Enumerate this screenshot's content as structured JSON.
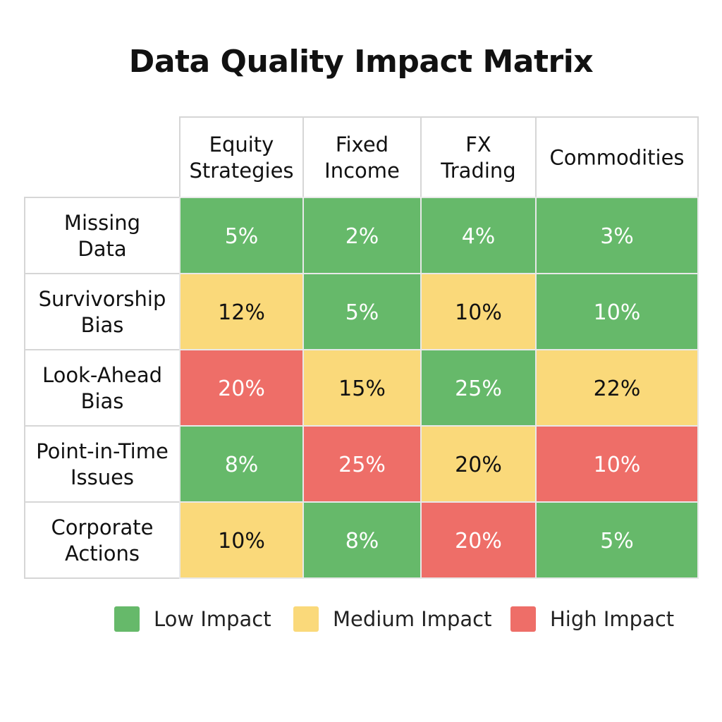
{
  "colors": {
    "low": "#66b96a",
    "medium": "#fad97a",
    "high": "#ee6e68",
    "grid": "#d6d6d6",
    "text_dark": "#111111",
    "text_light": "#ffffff"
  },
  "chart_data": {
    "type": "heatmap",
    "title": "Data Quality Impact Matrix",
    "columns": [
      [
        "Equity",
        "Strategies"
      ],
      [
        "Fixed",
        "Income"
      ],
      [
        "FX",
        "Trading"
      ],
      [
        "Commodities"
      ]
    ],
    "rows": [
      [
        "Missing",
        "Data"
      ],
      [
        "Survivorship",
        "Bias"
      ],
      [
        "Look-Ahead",
        "Bias"
      ],
      [
        "Point-in-Time",
        "Issues"
      ],
      [
        "Corporate",
        "Actions"
      ]
    ],
    "values": [
      [
        "5%",
        "2%",
        "4%",
        "3%"
      ],
      [
        "12%",
        "5%",
        "10%",
        "10%"
      ],
      [
        "20%",
        "15%",
        "25%",
        "22%"
      ],
      [
        "8%",
        "25%",
        "20%",
        "10%"
      ],
      [
        "10%",
        "8%",
        "20%",
        "5%"
      ]
    ],
    "levels": [
      [
        "low",
        "low",
        "low",
        "low"
      ],
      [
        "medium",
        "low",
        "medium",
        "low"
      ],
      [
        "high",
        "medium",
        "low",
        "medium"
      ],
      [
        "low",
        "high",
        "medium",
        "high"
      ],
      [
        "medium",
        "low",
        "high",
        "low"
      ]
    ],
    "legend": [
      {
        "level": "low",
        "label": "Low Impact"
      },
      {
        "level": "medium",
        "label": "Medium Impact"
      },
      {
        "level": "high",
        "label": "High Impact"
      }
    ],
    "legend_position": "bottom"
  }
}
